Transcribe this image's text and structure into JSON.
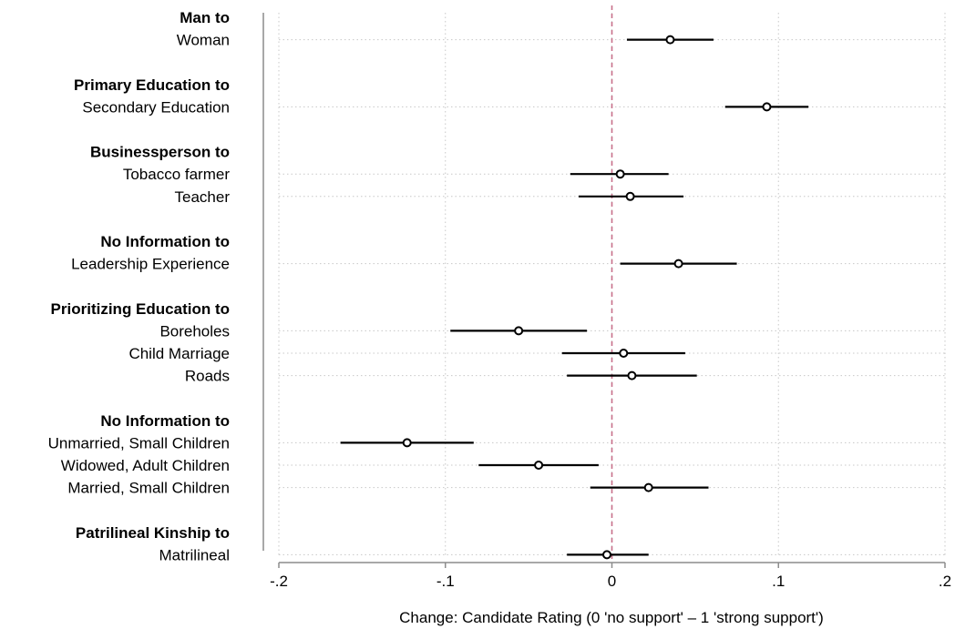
{
  "chart_data": {
    "type": "scatter",
    "subtype": "coefficient-plot",
    "title": "",
    "xlabel": "Change: Candidate Rating (0 'no support' – 1 'strong support')",
    "ylabel": "",
    "xlim": [
      -0.2,
      0.2
    ],
    "xticks": [
      -0.2,
      -0.1,
      0,
      0.1,
      0.2
    ],
    "xtick_labels": [
      "-.2",
      "-.1",
      "0",
      ".1",
      ".2"
    ],
    "grid": true,
    "reference_line": {
      "x": 0,
      "style": "dashed",
      "color": "#c8708a"
    },
    "point_color": "#000000",
    "groups": [
      {
        "header": "Man to",
        "items": [
          {
            "label": "Woman",
            "estimate": 0.035,
            "ci_low": 0.009,
            "ci_high": 0.061
          }
        ]
      },
      {
        "header": "Primary Education to",
        "items": [
          {
            "label": "Secondary Education",
            "estimate": 0.093,
            "ci_low": 0.068,
            "ci_high": 0.118
          }
        ]
      },
      {
        "header": "Businessperson to",
        "items": [
          {
            "label": "Tobacco farmer",
            "estimate": 0.005,
            "ci_low": -0.025,
            "ci_high": 0.034
          },
          {
            "label": "Teacher",
            "estimate": 0.011,
            "ci_low": -0.02,
            "ci_high": 0.043
          }
        ]
      },
      {
        "header": "No Information to",
        "items": [
          {
            "label": "Leadership Experience",
            "estimate": 0.04,
            "ci_low": 0.005,
            "ci_high": 0.075
          }
        ]
      },
      {
        "header": "Prioritizing Education to",
        "items": [
          {
            "label": "Boreholes",
            "estimate": -0.056,
            "ci_low": -0.097,
            "ci_high": -0.015
          },
          {
            "label": "Child Marriage",
            "estimate": 0.007,
            "ci_low": -0.03,
            "ci_high": 0.044
          },
          {
            "label": "Roads",
            "estimate": 0.012,
            "ci_low": -0.027,
            "ci_high": 0.051
          }
        ]
      },
      {
        "header": "No Information to",
        "items": [
          {
            "label": "Unmarried, Small Children",
            "estimate": -0.123,
            "ci_low": -0.163,
            "ci_high": -0.083
          },
          {
            "label": "Widowed, Adult Children",
            "estimate": -0.044,
            "ci_low": -0.08,
            "ci_high": -0.008
          },
          {
            "label": "Married, Small Children",
            "estimate": 0.022,
            "ci_low": -0.013,
            "ci_high": 0.058
          }
        ]
      },
      {
        "header": "Patrilineal Kinship to",
        "items": [
          {
            "label": "Matrilineal",
            "estimate": -0.003,
            "ci_low": -0.027,
            "ci_high": 0.022
          }
        ]
      }
    ]
  }
}
